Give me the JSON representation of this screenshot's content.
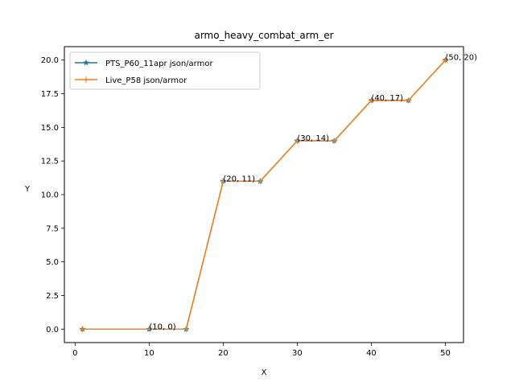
{
  "chart_data": {
    "type": "line",
    "title": "armo_heavy_combat_arm_er",
    "xlabel": "X",
    "ylabel": "Y",
    "xlim": [
      -1.45,
      52.45
    ],
    "ylim": [
      -1.0,
      21.0
    ],
    "xticks": [
      0,
      10,
      20,
      30,
      40,
      50
    ],
    "yticks": [
      0.0,
      2.5,
      5.0,
      7.5,
      10.0,
      12.5,
      15.0,
      17.5,
      20.0
    ],
    "xtick_labels": [
      "0",
      "10",
      "20",
      "30",
      "40",
      "50"
    ],
    "ytick_labels": [
      "0.0",
      "2.5",
      "5.0",
      "7.5",
      "10.0",
      "12.5",
      "15.0",
      "17.5",
      "20.0"
    ],
    "grid": false,
    "legend_position": "top-left",
    "series": [
      {
        "name": "PTS_P60_11apr json/armor",
        "color": "#1f77b4",
        "marker": "star",
        "x": [
          1,
          10,
          15,
          20,
          25,
          30,
          35,
          40,
          45,
          50
        ],
        "y": [
          0,
          0,
          0,
          11,
          11,
          14,
          14,
          17,
          17,
          20
        ]
      },
      {
        "name": "Live_P58 json/armor",
        "color": "#ff7f0e",
        "marker": "plus",
        "x": [
          1,
          10,
          15,
          20,
          25,
          30,
          35,
          40,
          45,
          50
        ],
        "y": [
          0,
          0,
          0,
          11,
          11,
          14,
          14,
          17,
          17,
          20
        ]
      }
    ],
    "annotations": [
      {
        "text": "(10, 0)",
        "x": 10,
        "y": 0
      },
      {
        "text": "(20, 11)",
        "x": 20,
        "y": 11
      },
      {
        "text": "(30, 14)",
        "x": 30,
        "y": 14
      },
      {
        "text": "(40, 17)",
        "x": 40,
        "y": 17
      },
      {
        "text": "(50, 20)",
        "x": 50,
        "y": 20
      }
    ]
  }
}
